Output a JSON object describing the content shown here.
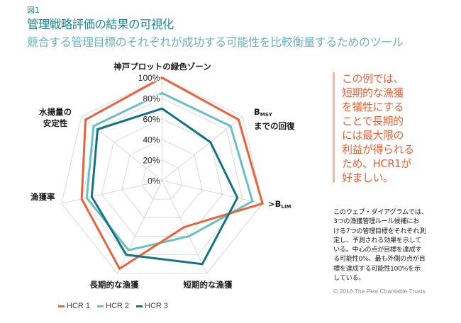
{
  "figure": {
    "label": "図1",
    "title": "管理戦略評価の結果の可視化",
    "subtitle": "競合する管理目標のそれぞれが成功する可能性を比較衡量するためのツール"
  },
  "chart_data": {
    "type": "radar",
    "title": "管理戦略評価の結果の可視化",
    "axes": [
      {
        "label": "神戸プロットの緑色ゾーン"
      },
      {
        "main": "B",
        "sub": "MSY",
        "line2": "までの回復",
        "label": "BMSYまでの回復"
      },
      {
        "main": ">B",
        "sub": "LIM",
        "label": ">BLIM"
      },
      {
        "label": "短期的な漁獲"
      },
      {
        "label": "長期的な漁獲"
      },
      {
        "label": "漁獲率"
      },
      {
        "line1": "水揚量の",
        "line2": "安定性",
        "label": "水揚量の安定性"
      }
    ],
    "rlim": [
      0,
      100
    ],
    "ticks": [
      "0%",
      "20%",
      "40%",
      "60%",
      "80%",
      "100%"
    ],
    "tick_values": [
      0,
      20,
      40,
      60,
      80,
      100
    ],
    "grid": true,
    "legend": "bottom-left",
    "series": [
      {
        "name": "HCR 1",
        "color": "#e8633a",
        "values": [
          100,
          95,
          100,
          50,
          95,
          80,
          95
        ]
      },
      {
        "name": "HCR 2",
        "color": "#6cc0c4",
        "values": [
          85,
          85,
          90,
          60,
          75,
          75,
          85
        ]
      },
      {
        "name": "HCR 3",
        "color": "#127482",
        "values": [
          70,
          60,
          75,
          90,
          80,
          70,
          80
        ]
      }
    ]
  },
  "callout": {
    "lines": [
      "この例では、",
      "短期的な漁獲",
      "を犠牲にする",
      "ことで長期的",
      "には最大限の",
      "利益が得られる",
      "ため、HCR1が",
      "好ましい。"
    ]
  },
  "note": {
    "lines": [
      "このウェブ・ダイアグラムでは、",
      "3つの漁獲管理ルール候補にお",
      "ける7つの管理目標をそれぞれ測",
      "定し、予測される効果を示して",
      "いる。中心の点が目標を達成す",
      "る可能性0%、最も外側の点が目",
      "標を達成する可能性100%を示",
      "している。"
    ]
  },
  "copyright": "© 2016 The Pew Charitable Trusts",
  "colors": {
    "accent": "#1b8a96",
    "subtitle": "#6fb3bc",
    "callout": "#e8633a",
    "grid": "#d6d6d6"
  }
}
